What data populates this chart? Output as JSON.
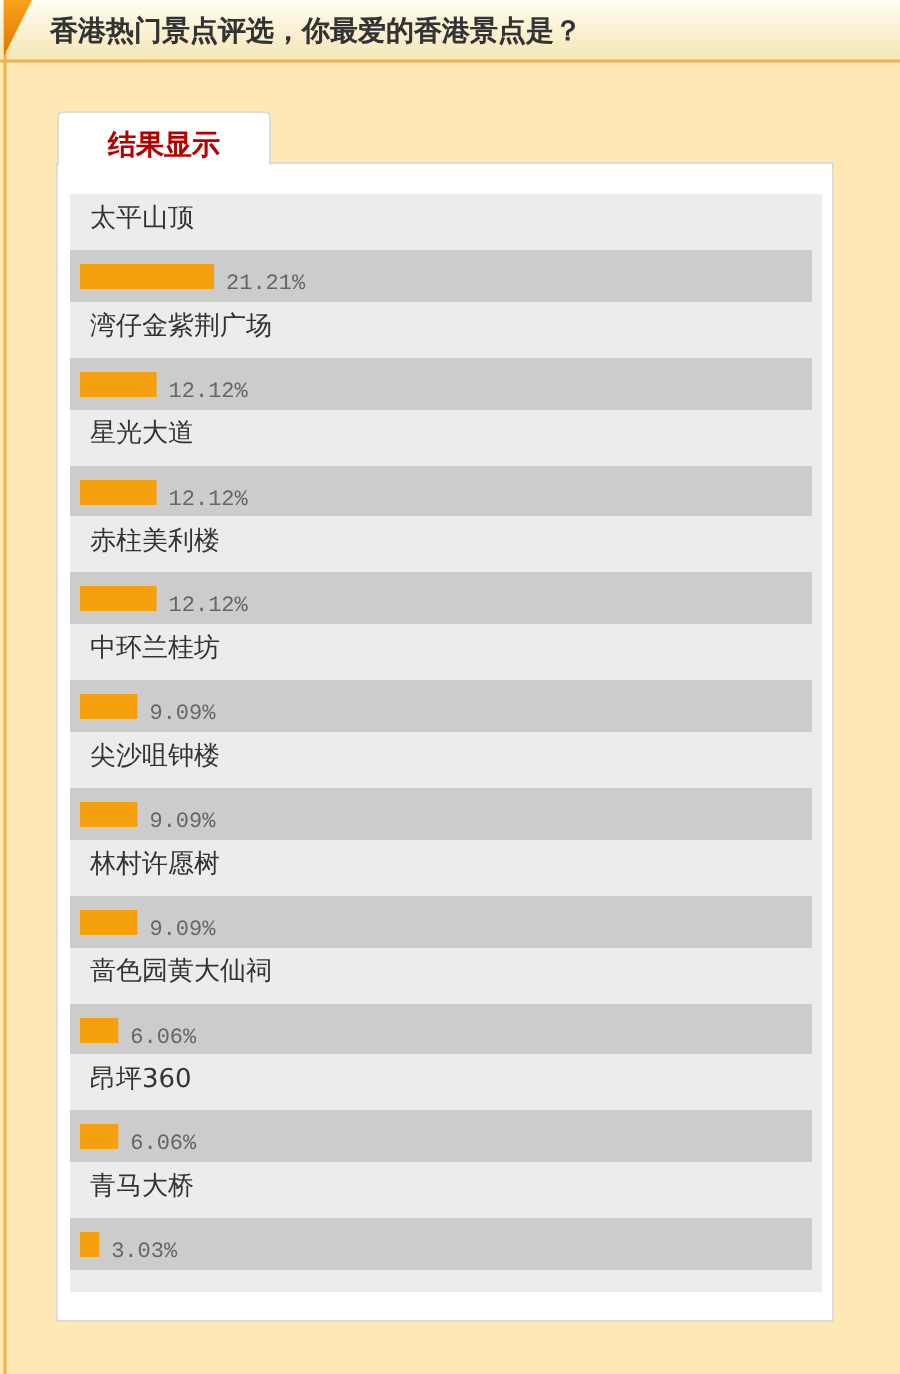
{
  "chart_data": {
    "type": "bar",
    "orientation": "horizontal",
    "title": "香港热门景点评选，你最爱的香港景点是？",
    "subtitle": "结果显示",
    "categories": [
      "太平山顶",
      "湾仔金紫荆广场",
      "星光大道",
      "赤柱美利楼",
      "中环兰桂坊",
      "尖沙咀钟楼",
      "林村许愿树",
      "啬色园黄大仙祠",
      "昂坪360",
      "青马大桥"
    ],
    "values": [
      21.21,
      12.12,
      12.12,
      12.12,
      9.09,
      9.09,
      9.09,
      6.06,
      6.06,
      3.03
    ],
    "value_labels": [
      "21.21%",
      "12.12%",
      "12.12%",
      "12.12%",
      "9.09%",
      "9.09%",
      "9.09%",
      "6.06%",
      "6.06%",
      "3.03%"
    ],
    "color": "#f5a00c"
  }
}
